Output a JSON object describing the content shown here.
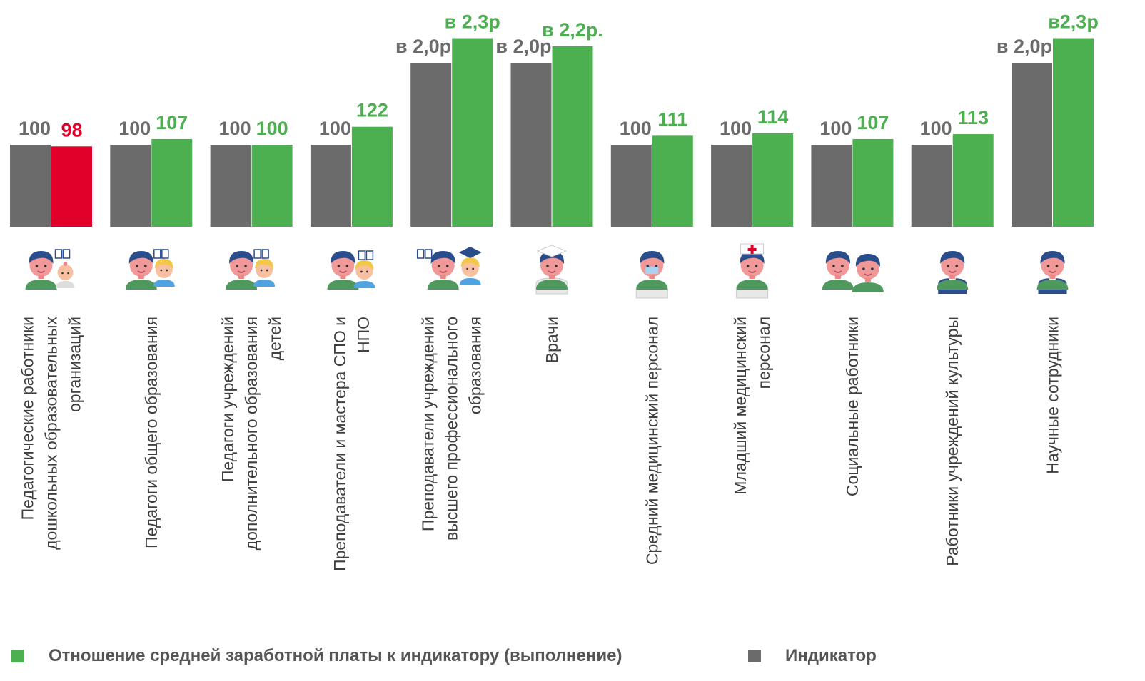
{
  "chart_data": {
    "type": "bar",
    "title": "",
    "xlabel": "",
    "ylabel": "",
    "ylim": [
      0,
      250
    ],
    "grid": false,
    "legend_placement": "bottom",
    "categories": [
      "Педагогические работники дошкольных образовательных организаций",
      "Педагоги общего образования",
      "Педагоги учреждений дополнительного образования детей",
      "Преподаватели и мастера СПО и НПО",
      "Преподаватели учреждений высшего профессионального образования",
      "Врачи",
      "Средний медицинский персонал",
      "Младший медицинский персонал",
      "Социальные работники",
      "Работники учреждений культуры",
      "Научные сотрудники"
    ],
    "category_lines": [
      [
        "Педагогические работники",
        "дошкольных образовательных",
        "организаций"
      ],
      [
        "Педагоги общего образования"
      ],
      [
        "Педагоги учреждений",
        "дополнительного образования",
        "детей"
      ],
      [
        "Преподаватели и мастера СПО и",
        "НПО"
      ],
      [
        "Преподаватели учреждений",
        "высшего профессионального",
        "образования"
      ],
      [
        "Врачи"
      ],
      [
        "Средний медицинский персонал"
      ],
      [
        "Младший медицинский",
        "персонал"
      ],
      [
        "Социальные работники"
      ],
      [
        "Работники учреждений культуры"
      ],
      [
        "Научные сотрудники"
      ]
    ],
    "category_icons": [
      "teacher-with-baby-icon",
      "teacher-with-child-icon",
      "teacher-with-child-icon",
      "teacher-with-tools-icon",
      "professor-with-graduate-icon",
      "doctor-icon",
      "nurse-with-mask-icon",
      "junior-nurse-icon",
      "social-worker-with-elder-icon",
      "culture-worker-icon",
      "scientist-icon"
    ],
    "series": [
      {
        "name": "Индикатор",
        "color": "#6b6b6b",
        "values": [
          100,
          100,
          100,
          100,
          200,
          200,
          100,
          100,
          100,
          100,
          200
        ],
        "labels": [
          "100",
          "100",
          "100",
          "100",
          "в 2,0р",
          "в 2,0р",
          "100",
          "100",
          "100",
          "100",
          "в 2,0р"
        ]
      },
      {
        "name": "Отношение средней заработной платы к индикатору (выполнение)",
        "color": "#4caf50",
        "values": [
          98,
          107,
          100,
          122,
          230,
          220,
          111,
          114,
          107,
          113,
          230
        ],
        "labels": [
          "98",
          "107",
          "100",
          "122",
          "в 2,3р",
          "в 2,2р.",
          "111",
          "114",
          "107",
          "113",
          "в2,3р"
        ],
        "highlight": {
          "index": 0,
          "color": "#e0002a"
        }
      }
    ]
  },
  "legend": {
    "items": [
      {
        "label": "Отношение средней заработной платы к индикатору (выполнение)",
        "color": "#4caf50"
      },
      {
        "label": "Индикатор",
        "color": "#6b6b6b"
      }
    ]
  }
}
